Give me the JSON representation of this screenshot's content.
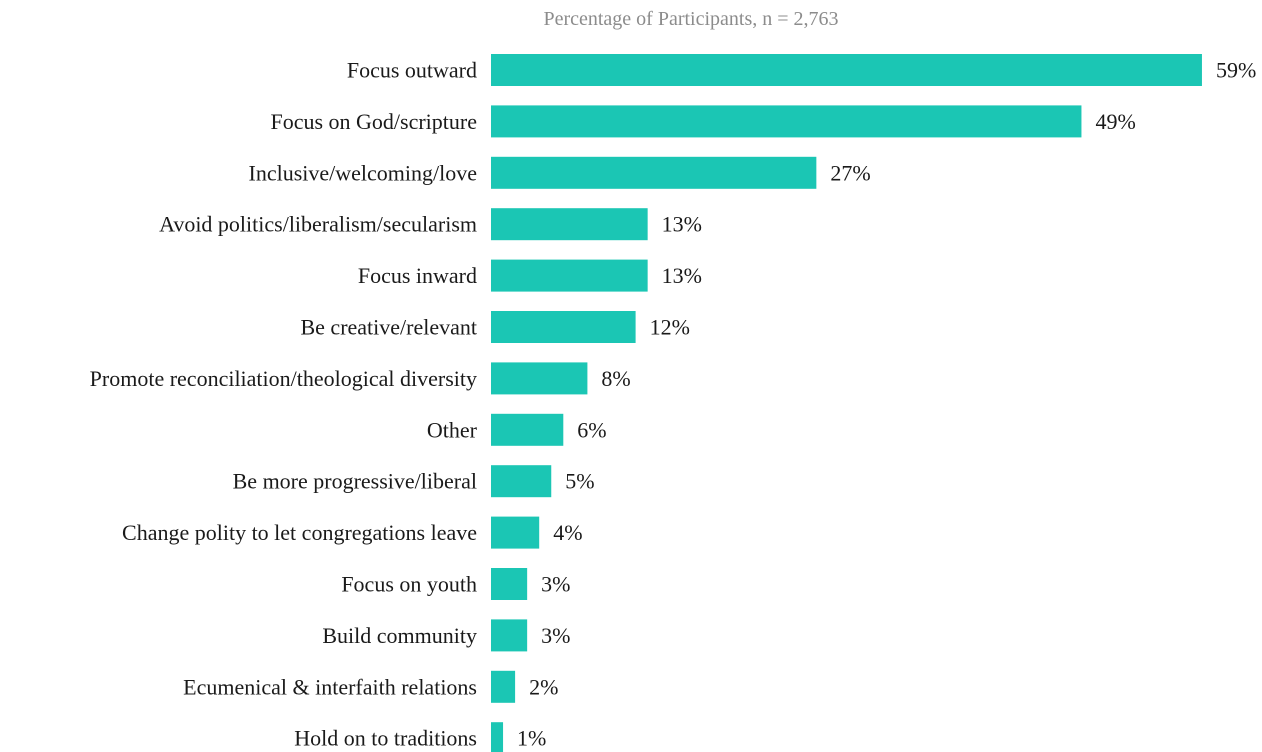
{
  "chart_data": {
    "type": "bar",
    "orientation": "horizontal",
    "title": "Percentage of Participants, n = 2,763",
    "xlabel": "",
    "ylabel": "",
    "xlim": [
      0,
      59
    ],
    "grid": false,
    "bar_color": "#1bc6b4",
    "categories": [
      "Focus outward",
      "Focus on God/scripture",
      "Inclusive/welcoming/love",
      "Avoid politics/liberalism/secularism",
      "Focus inward",
      "Be creative/relevant",
      "Promote reconciliation/theological diversity",
      "Other",
      "Be more progressive/liberal",
      "Change polity to let congregations leave",
      "Focus on youth",
      "Build community",
      "Ecumenical & interfaith relations",
      "Hold on to traditions"
    ],
    "values": [
      59,
      49,
      27,
      13,
      13,
      12,
      8,
      6,
      5,
      4,
      3,
      3,
      2,
      1
    ],
    "value_labels": [
      "59%",
      "49%",
      "27%",
      "13%",
      "13%",
      "12%",
      "8%",
      "6%",
      "5%",
      "4%",
      "3%",
      "3%",
      "2%",
      "1%"
    ]
  }
}
